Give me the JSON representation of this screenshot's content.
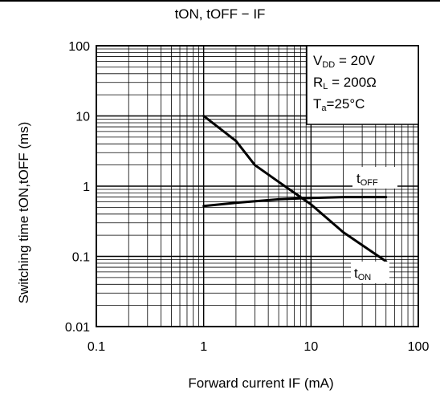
{
  "chart_data": {
    "type": "line",
    "title": "tON, tOFF − IF",
    "xlabel": "Forward current   IF   (mA)",
    "ylabel": "Switching time   tON,tOFF   (ms)",
    "x_scale": "log",
    "y_scale": "log",
    "xlim": [
      0.1,
      100
    ],
    "ylim": [
      0.01,
      100
    ],
    "x_ticks": [
      "0.1",
      "1",
      "10",
      "100"
    ],
    "y_ticks": [
      "100",
      "10",
      "1",
      "0.1",
      "0.01"
    ],
    "grid": true,
    "series": [
      {
        "name": "tOFF",
        "x": [
          1,
          2,
          5,
          10,
          20,
          50
        ],
        "y": [
          0.52,
          0.58,
          0.65,
          0.68,
          0.7,
          0.7
        ]
      },
      {
        "name": "tON",
        "x": [
          1,
          2,
          3,
          5,
          10,
          20,
          50
        ],
        "y": [
          10,
          4.4,
          2.0,
          1.15,
          0.55,
          0.22,
          0.085
        ]
      }
    ],
    "labels": {
      "toff": {
        "main": "t",
        "sub": "OFF"
      },
      "ton": {
        "main": "t",
        "sub": "ON"
      }
    },
    "conditions": [
      {
        "main": "V",
        "sub": "DD",
        "rest": " = 20V"
      },
      {
        "main": "R",
        "sub": "L",
        "rest": " = 200Ω"
      },
      {
        "main": "T",
        "sub": "a",
        "rest": "=25°C"
      }
    ]
  }
}
